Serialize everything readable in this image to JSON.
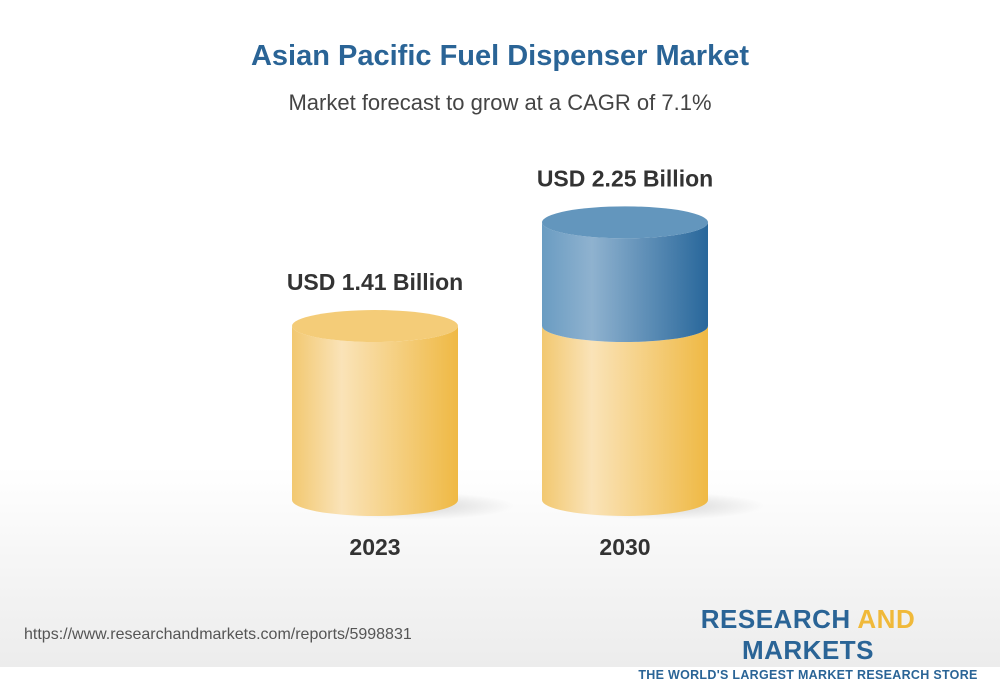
{
  "title": "Asian Pacific Fuel Dispenser Market",
  "subtitle": "Market forecast to grow at a CAGR of 7.1%",
  "chart_data": {
    "type": "bar",
    "style": "3d-cylinder",
    "categories": [
      "2023",
      "2030"
    ],
    "values": [
      1.41,
      2.25
    ],
    "data_labels": [
      "USD 1.41 Billion",
      "USD 2.25 Billion"
    ],
    "title": "Asian Pacific Fuel Dispenser Market",
    "subtitle": "Market forecast to grow at a CAGR of 7.1%",
    "xlabel": "",
    "ylabel": "",
    "grid": false,
    "colors": {
      "base": "#f0b93a",
      "growth": "#2a6496"
    }
  },
  "footer": {
    "url": "https://www.researchandmarkets.com/reports/5998831",
    "logo_word1": "RESEARCH ",
    "logo_word2": "AND",
    "logo_word3": " MARKETS",
    "logo_tagline": "THE WORLD'S LARGEST MARKET RESEARCH STORE"
  }
}
